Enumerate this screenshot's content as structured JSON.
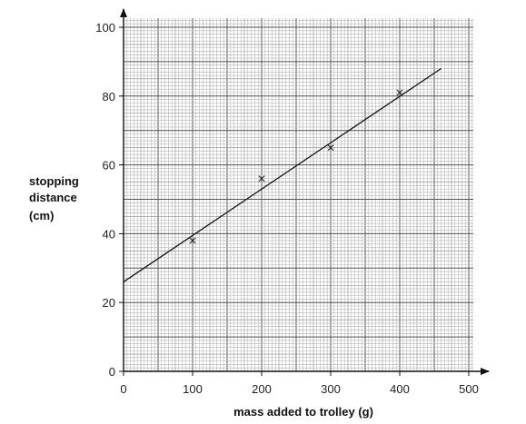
{
  "chart_data": {
    "type": "scatter",
    "title": "",
    "xlabel": "mass added to trolley (g)",
    "ylabel_lines": [
      "stopping",
      "distance",
      "(cm)"
    ],
    "xlim": [
      0,
      500
    ],
    "ylim": [
      0,
      100
    ],
    "x_ticks": [
      0,
      100,
      200,
      300,
      400,
      500
    ],
    "y_ticks": [
      0,
      20,
      40,
      60,
      80,
      100
    ],
    "grid": true,
    "series": [
      {
        "marker": "x",
        "x": [
          100,
          200,
          300,
          400
        ],
        "y": [
          38,
          56,
          65,
          81
        ]
      }
    ],
    "fit_line": {
      "x": [
        0,
        460
      ],
      "y": [
        26,
        88
      ]
    }
  }
}
